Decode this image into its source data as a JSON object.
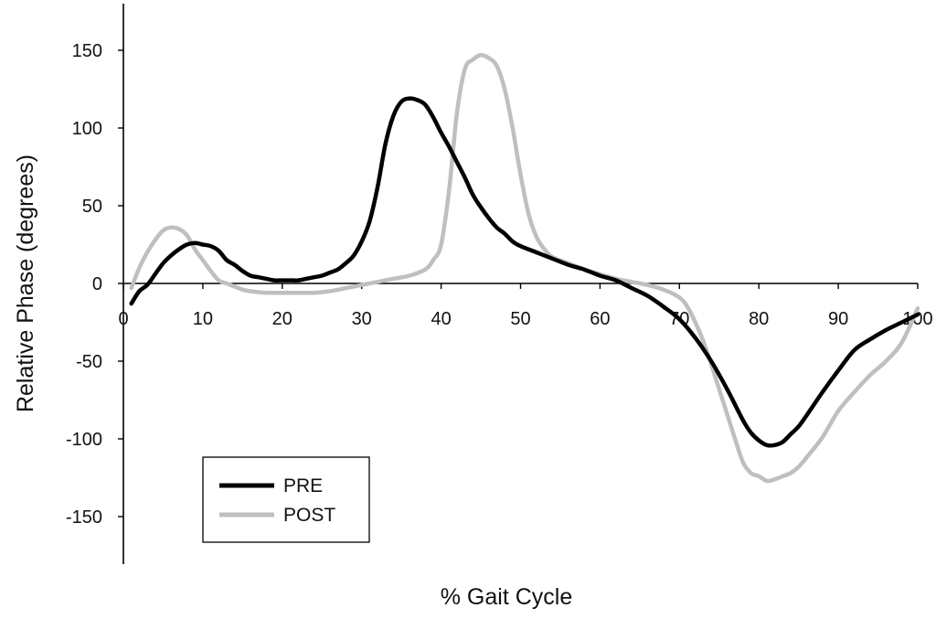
{
  "chart_data": {
    "type": "line",
    "title": "",
    "xlabel": "% Gait Cycle",
    "ylabel": "Relative Phase (degrees)",
    "xlim": [
      0,
      100
    ],
    "ylim": [
      -180,
      180
    ],
    "x_ticks": [
      0,
      10,
      20,
      30,
      40,
      50,
      60,
      70,
      80,
      90,
      100
    ],
    "y_ticks": [
      150,
      100,
      50,
      0,
      -50,
      -100,
      -150
    ],
    "grid": false,
    "legend_position": "bottom-left",
    "series": [
      {
        "name": "PRE",
        "color": "#000000",
        "x": [
          1,
          2,
          3,
          4,
          5,
          6,
          7,
          8,
          9,
          10,
          11,
          12,
          13,
          14,
          15,
          16,
          17,
          18,
          19,
          20,
          21,
          22,
          23,
          24,
          25,
          26,
          27,
          28,
          29,
          30,
          31,
          32,
          33,
          34,
          35,
          36,
          37,
          38,
          39,
          40,
          41,
          42,
          43,
          44,
          45,
          46,
          47,
          48,
          49,
          50,
          52,
          54,
          56,
          58,
          60,
          62,
          64,
          66,
          68,
          70,
          72,
          74,
          76,
          78,
          79,
          80,
          81,
          82,
          83,
          84,
          85,
          86,
          88,
          90,
          92,
          94,
          96,
          98,
          100
        ],
        "y": [
          -13,
          -5,
          -1,
          6,
          13,
          18,
          22,
          25,
          26,
          25,
          24,
          21,
          15,
          12,
          8,
          5,
          4,
          3,
          2,
          2,
          2,
          2,
          3,
          4,
          5,
          7,
          9,
          13,
          18,
          27,
          40,
          62,
          90,
          108,
          117,
          119,
          118,
          115,
          107,
          97,
          88,
          78,
          68,
          57,
          49,
          42,
          36,
          32,
          27,
          24,
          20,
          16,
          12,
          9,
          5,
          2,
          -3,
          -8,
          -15,
          -23,
          -35,
          -50,
          -68,
          -88,
          -96,
          -101,
          -104,
          -104,
          -102,
          -97,
          -92,
          -85,
          -70,
          -56,
          -43,
          -36,
          -30,
          -25,
          -20
        ]
      },
      {
        "name": "POST",
        "color": "#bfbfbf",
        "x": [
          1,
          2,
          3,
          4,
          5,
          6,
          7,
          8,
          9,
          10,
          11,
          12,
          13,
          14,
          15,
          16,
          18,
          20,
          22,
          24,
          26,
          28,
          30,
          32,
          34,
          36,
          38,
          39,
          40,
          41,
          42,
          43,
          44,
          45,
          46,
          47,
          48,
          49,
          50,
          51,
          52,
          53,
          54,
          56,
          58,
          60,
          62,
          64,
          66,
          68,
          70,
          71,
          72,
          73,
          74,
          75,
          76,
          77,
          78,
          79,
          80,
          81,
          82,
          83,
          84,
          85,
          86,
          88,
          90,
          92,
          94,
          96,
          98,
          100
        ],
        "y": [
          -3,
          10,
          20,
          28,
          34,
          36,
          35,
          31,
          22,
          15,
          8,
          2,
          0,
          -2,
          -4,
          -5,
          -6,
          -6,
          -6,
          -6,
          -5,
          -3,
          -1,
          1,
          3,
          5,
          9,
          15,
          25,
          60,
          110,
          138,
          144,
          147,
          145,
          140,
          125,
          100,
          70,
          45,
          30,
          22,
          17,
          13,
          9,
          6,
          3,
          1,
          -1,
          -4,
          -9,
          -15,
          -25,
          -37,
          -52,
          -68,
          -84,
          -100,
          -115,
          -122,
          -124,
          -127,
          -126,
          -124,
          -122,
          -118,
          -112,
          -99,
          -82,
          -70,
          -59,
          -50,
          -38,
          -16
        ]
      }
    ]
  }
}
